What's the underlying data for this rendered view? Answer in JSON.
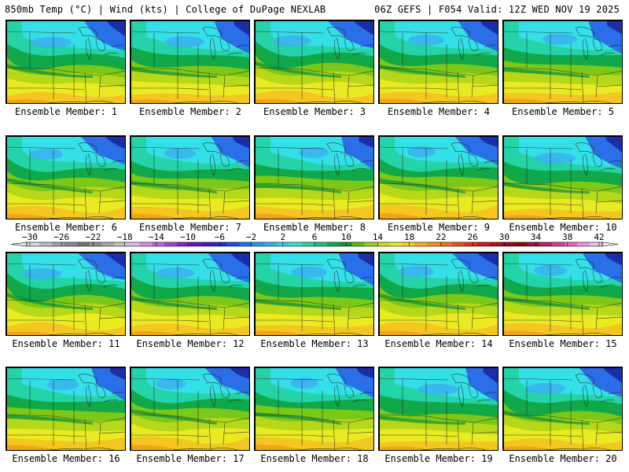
{
  "header": {
    "left": "850mb Temp (°C) | Wind (kts) | College of DuPage NEXLAB",
    "right": "06Z GEFS | F054 Valid: 12Z WED NOV 19 2025"
  },
  "member_label_prefix": "Ensemble Member:",
  "members": [
    1,
    2,
    3,
    4,
    5,
    6,
    7,
    8,
    9,
    10,
    11,
    12,
    13,
    14,
    15,
    16,
    17,
    18,
    19,
    20
  ],
  "colorbar": {
    "ticks": [
      -30,
      -26,
      -22,
      -18,
      -14,
      -10,
      -6,
      -2,
      2,
      6,
      10,
      14,
      18,
      22,
      26,
      30,
      34,
      38,
      42
    ],
    "colors": [
      "#d8d8d8",
      "#bdbdbd",
      "#a4a4a4",
      "#8c8c8c",
      "#767676",
      "#8f8f8f",
      "#a9a9a9",
      "#c4c4c4",
      "#e2b6f0",
      "#d98cf0",
      "#c75fe8",
      "#a93cd9",
      "#8a22c8",
      "#6a15b8",
      "#4a14c8",
      "#2a2ad8",
      "#1a4ee8",
      "#1e72f0",
      "#2898f0",
      "#2fb6ee",
      "#30d4f0",
      "#2ee6d8",
      "#22d8a8",
      "#18c880",
      "#10b050",
      "#0c9a3a",
      "#5cc018",
      "#9bd416",
      "#cce01a",
      "#eeea26",
      "#f5d424",
      "#f2b21c",
      "#f19418",
      "#ee7614",
      "#e9531a",
      "#e2301a",
      "#d0181a",
      "#b80f14",
      "#a00a12",
      "#880a10",
      "#a0103a",
      "#c0206e",
      "#dc3c9a",
      "#ee64c4",
      "#f590e0",
      "#f8bcf0"
    ]
  },
  "palette": {
    "navy": "#1a2ea8",
    "blue": "#2a6ee8",
    "sky": "#3ab0f0",
    "cyan": "#34e0e8",
    "teal": "#24d4a8",
    "green": "#10a848",
    "dkgreen": "#0a9038",
    "lime": "#7cc818",
    "yg": "#b6d818",
    "yellow": "#eaea22",
    "gold": "#f4c620",
    "orange": "#f29a18"
  }
}
